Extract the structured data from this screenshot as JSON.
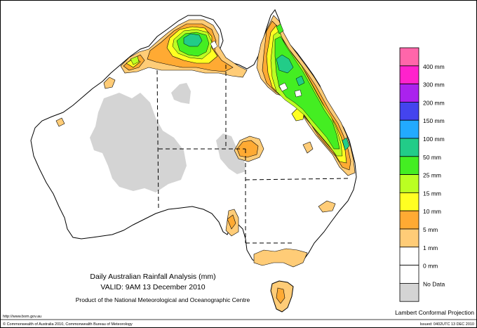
{
  "map": {
    "title": "Daily Australian Rainfall Analysis (mm)",
    "valid": "VALID: 9AM 13 December 2010",
    "product": "Product of the National Meteorological and Oceanographic Centre",
    "projection": "Lambert Conformal Projection",
    "url": "http://www.bom.gov.au",
    "copyright": "© Commonwealth of Australia 2010, Commonwealth Bureau of Meteorology",
    "issued": "Issued: 0402UTC 13 DEC 2010"
  },
  "legend": {
    "items": [
      {
        "label": "",
        "color": "#ff66aa"
      },
      {
        "label": "400 mm",
        "color": "#ff22cc"
      },
      {
        "label": "300 mm",
        "color": "#aa22ee"
      },
      {
        "label": "200 mm",
        "color": "#4444ee"
      },
      {
        "label": "150 mm",
        "color": "#22aaff"
      },
      {
        "label": "100 mm",
        "color": "#22cc88"
      },
      {
        "label": "50 mm",
        "color": "#44ee22"
      },
      {
        "label": "25 mm",
        "color": "#bbff22"
      },
      {
        "label": "15 mm",
        "color": "#ffff22"
      },
      {
        "label": "10 mm",
        "color": "#ffaa33"
      },
      {
        "label": "5 mm",
        "color": "#ffcc77"
      },
      {
        "label": "1 mm",
        "color": "#ffffff"
      },
      {
        "label": "0 mm",
        "color": "#ffffff"
      },
      {
        "label": "No Data",
        "color": "#d4d4d4"
      }
    ]
  },
  "colors": {
    "coastline": "#000000",
    "border": "#000000",
    "no_data": "#d4d4d4",
    "r1_5": "#ffcc77",
    "r5_10": "#ffaa33",
    "r10_15": "#ffff22",
    "r15_25": "#bbff22",
    "r25_50": "#44ee22",
    "r50_100": "#22cc88"
  }
}
